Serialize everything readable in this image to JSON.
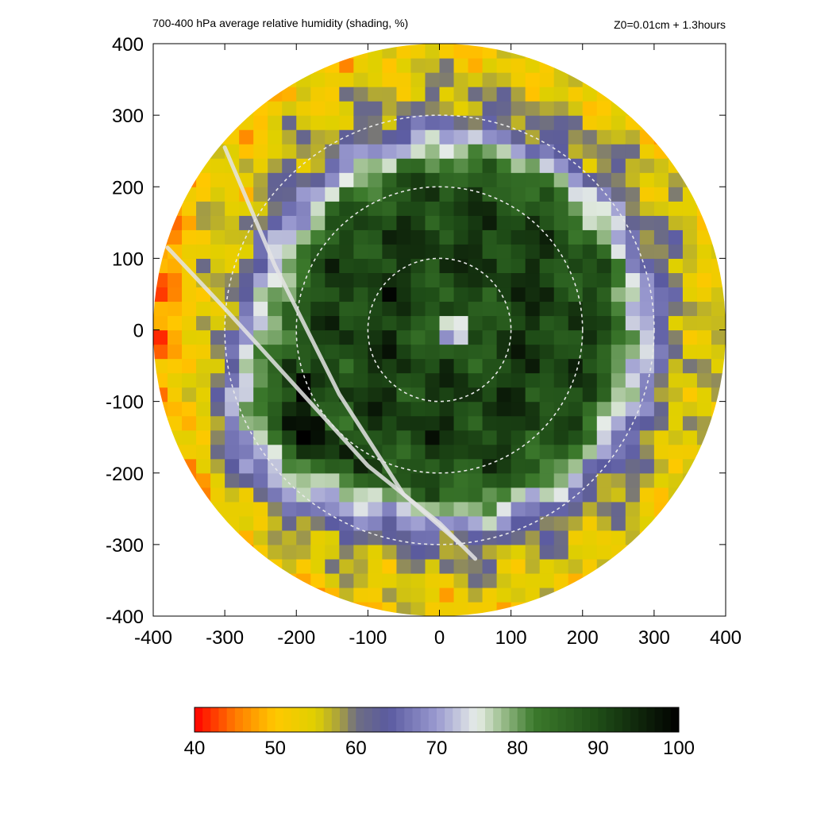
{
  "chart_data": {
    "type": "heatmap",
    "title": "700-400 hPa average relative humidity (shading, %)",
    "annotation": "Z0=0.01cm  + 1.3hours",
    "x_ticks": [
      -400,
      -300,
      -200,
      -100,
      0,
      100,
      200,
      300,
      400
    ],
    "y_ticks": [
      400,
      300,
      200,
      100,
      0,
      -100,
      -200,
      -300,
      -400
    ],
    "xlim": [
      -400,
      400
    ],
    "ylim": [
      -400,
      400
    ],
    "domain_radius": 400,
    "reference_circles": [
      100,
      200,
      300
    ],
    "field": {
      "variable": "relative humidity",
      "units": "%",
      "center": [
        20,
        0
      ],
      "eye_rh": 66,
      "eyewall_peak_rh": 92,
      "outer_rh": 52,
      "band_direction": "south-west"
    },
    "tracks": [
      {
        "points": [
          [
            -300,
            255
          ],
          [
            -230,
            90
          ],
          [
            -140,
            -90
          ],
          [
            -50,
            -230
          ],
          [
            30,
            -300
          ]
        ]
      },
      {
        "points": [
          [
            -380,
            115
          ],
          [
            -300,
            30
          ],
          [
            -200,
            -80
          ],
          [
            -100,
            -190
          ],
          [
            0,
            -270
          ],
          [
            50,
            -320
          ]
        ]
      }
    ],
    "colorbar": {
      "min": 40,
      "max": 100,
      "ticks": [
        40,
        50,
        60,
        70,
        80,
        90,
        100
      ],
      "stops": [
        {
          "v": 40,
          "c": "#ff0000"
        },
        {
          "v": 45,
          "c": "#ff7a00"
        },
        {
          "v": 50,
          "c": "#ffc800"
        },
        {
          "v": 55,
          "c": "#e0d000"
        },
        {
          "v": 58,
          "c": "#a8a040"
        },
        {
          "v": 60,
          "c": "#6e6e82"
        },
        {
          "v": 64,
          "c": "#5a5aa0"
        },
        {
          "v": 70,
          "c": "#9a9ad0"
        },
        {
          "v": 75,
          "c": "#e8eee8"
        },
        {
          "v": 78,
          "c": "#9fc090"
        },
        {
          "v": 82,
          "c": "#3c7a2c"
        },
        {
          "v": 90,
          "c": "#1f4d17"
        },
        {
          "v": 100,
          "c": "#000000"
        }
      ]
    }
  }
}
